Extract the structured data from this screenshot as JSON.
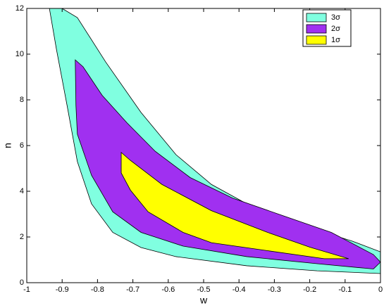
{
  "chart_data": {
    "type": "contour",
    "xlabel": "w",
    "ylabel": "n",
    "xlim": [
      -1,
      0
    ],
    "ylim": [
      0,
      12
    ],
    "xticks": [
      -1,
      -0.9,
      -0.8,
      -0.7,
      -0.6,
      -0.5,
      -0.4,
      -0.3,
      -0.2,
      -0.1,
      0
    ],
    "yticks": [
      0,
      2,
      4,
      6,
      8,
      10,
      12
    ],
    "legend": "upper right",
    "series": [
      {
        "name": "3σ",
        "color": "#80ffe0",
        "x": [
          -0.9,
          -0.857,
          -0.777,
          -0.677,
          -0.578,
          -0.478,
          -0.378,
          -0.279,
          -0.179,
          -0.08,
          0,
          0,
          -0.179,
          -0.378,
          -0.578,
          -0.677,
          -0.757,
          -0.817,
          -0.857,
          -0.886,
          -0.916,
          -0.936
        ],
        "y": [
          12,
          11.6,
          9.66,
          7.45,
          5.6,
          4.3,
          3.45,
          2.83,
          2.3,
          1.82,
          1.35,
          0.4,
          0.52,
          0.74,
          1.14,
          1.54,
          2.2,
          3.45,
          5.3,
          7.75,
          10.2,
          12
        ]
      },
      {
        "name": "2σ",
        "color": "#a030f0",
        "x": [
          -0.863,
          -0.841,
          -0.787,
          -0.717,
          -0.637,
          -0.538,
          -0.418,
          -0.279,
          -0.139,
          -0.02,
          0,
          -0.02,
          -0.179,
          -0.378,
          -0.558,
          -0.677,
          -0.757,
          -0.817,
          -0.857,
          -0.861
        ],
        "y": [
          9.75,
          9.45,
          8.2,
          7.0,
          5.75,
          4.6,
          3.7,
          2.95,
          2.2,
          1.23,
          0.9,
          0.6,
          0.83,
          1.14,
          1.6,
          2.2,
          3.1,
          4.7,
          6.5,
          7.75
        ]
      },
      {
        "name": "1σ",
        "color": "#ffff00",
        "x": [
          -0.733,
          -0.707,
          -0.618,
          -0.478,
          -0.319,
          -0.199,
          -0.09,
          -0.159,
          -0.319,
          -0.478,
          -0.558,
          -0.657,
          -0.707,
          -0.733
        ],
        "y": [
          5.7,
          5.35,
          4.3,
          3.15,
          2.2,
          1.55,
          1.05,
          1.05,
          1.4,
          1.75,
          2.2,
          3.1,
          4.05,
          4.8
        ]
      }
    ]
  }
}
